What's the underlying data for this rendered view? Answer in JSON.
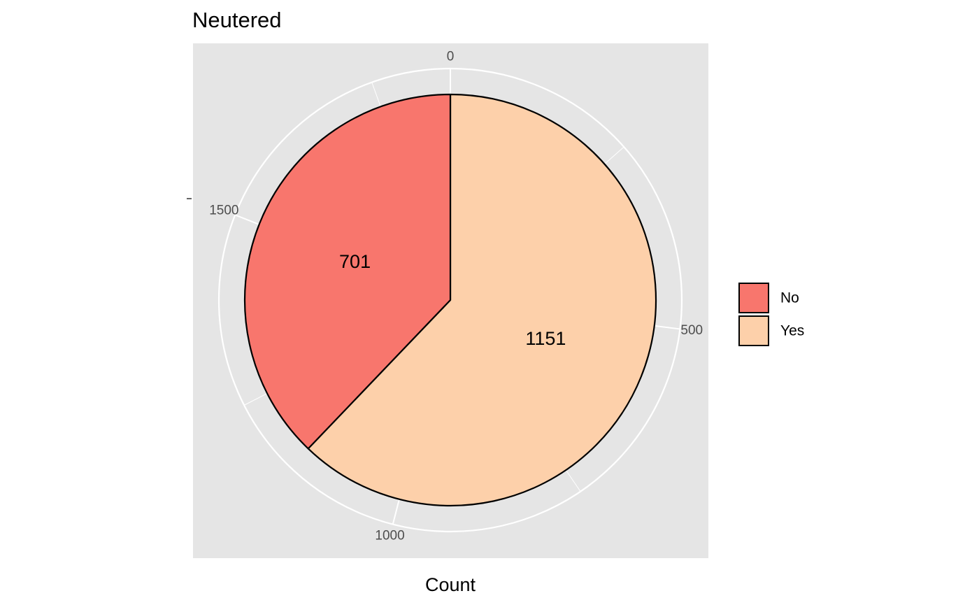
{
  "chart_data": {
    "type": "pie",
    "title": "Neutered",
    "xlabel": "Count",
    "ylabel": "",
    "categories": [
      "No",
      "Yes"
    ],
    "values": [
      701,
      1151
    ],
    "colors": [
      "#F8766D",
      "#FDD0AA"
    ],
    "outline_color": "#000000",
    "start_angle": "top",
    "direction": "clockwise",
    "order_from_start": [
      "Yes",
      "No"
    ],
    "radial_ticks": [
      0,
      500,
      1000,
      1500
    ],
    "panel_background": "#E5E5E5",
    "grid": true,
    "legend": {
      "placement": "right",
      "entries": [
        "No",
        "Yes"
      ]
    }
  }
}
